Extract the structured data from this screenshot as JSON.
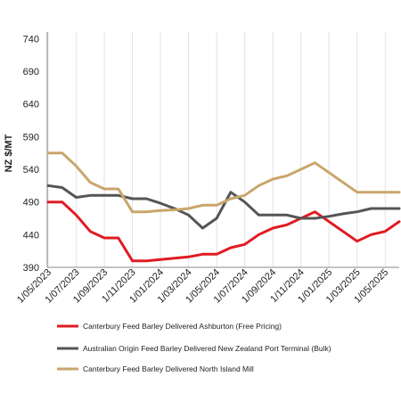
{
  "chart_data": {
    "type": "line",
    "ylabel": "NZ $/MT",
    "ylim": [
      390,
      750
    ],
    "yticks": [
      390,
      440,
      490,
      540,
      590,
      640,
      690,
      740
    ],
    "grid": "vertical",
    "legend_position": "bottom",
    "x": [
      "2023-05",
      "2023-06",
      "2023-07",
      "2023-08",
      "2023-09",
      "2023-10",
      "2023-11",
      "2023-12",
      "2024-01",
      "2024-02",
      "2024-03",
      "2024-04",
      "2024-05",
      "2024-06",
      "2024-07",
      "2024-08",
      "2024-09",
      "2024-10",
      "2024-11",
      "2024-12",
      "2025-01",
      "2025-02",
      "2025-03",
      "2025-04",
      "2025-05",
      "2025-06"
    ],
    "xtick_labels": [
      "1/05/2023",
      "1/07/2023",
      "1/09/2023",
      "1/11/2023",
      "1/01/2024",
      "1/03/2024",
      "1/05/2024",
      "1/07/2024",
      "1/09/2024",
      "1/11/2024",
      "1/01/2025",
      "1/03/2025",
      "1/05/2025"
    ],
    "series": [
      {
        "name": "Canterbury Feed Barley Delivered Ashburton (Free Pricing)",
        "color": "#e01b22",
        "values": [
          490,
          490,
          470,
          445,
          435,
          435,
          400,
          400,
          402,
          404,
          406,
          410,
          410,
          420,
          425,
          440,
          450,
          455,
          465,
          475,
          460,
          445,
          430,
          440,
          445,
          460
        ]
      },
      {
        "name": "Australian Origin Feed Barley Delivered New Zealand Port Terminal (Bulk)",
        "color": "#555555",
        "values": [
          515,
          512,
          497,
          500,
          500,
          500,
          495,
          495,
          488,
          480,
          470,
          450,
          465,
          505,
          490,
          470,
          470,
          470,
          465,
          465,
          468,
          472,
          475,
          480,
          480,
          480
        ]
      },
      {
        "name": "Canterbury Feed Barley Delivered North Island Mill",
        "color": "#c9a66b",
        "values": [
          565,
          565,
          545,
          520,
          510,
          510,
          475,
          475,
          477,
          478,
          480,
          485,
          485,
          495,
          500,
          515,
          525,
          530,
          540,
          550,
          535,
          520,
          505,
          505,
          505,
          505
        ]
      }
    ]
  }
}
